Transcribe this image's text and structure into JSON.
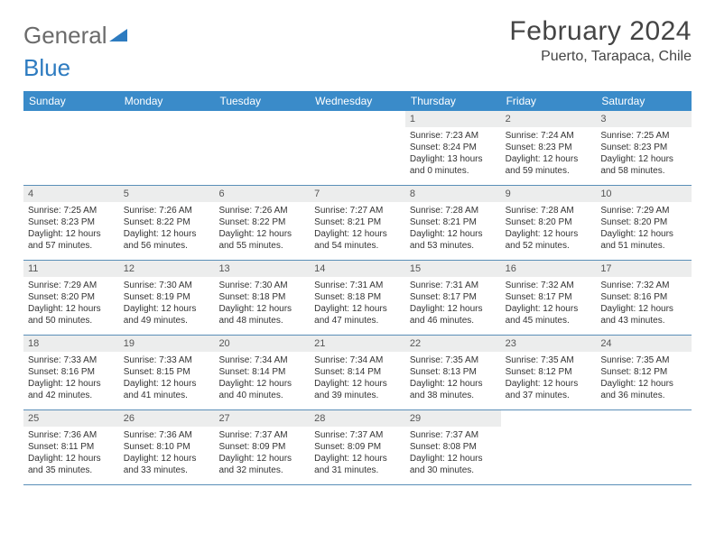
{
  "logo": {
    "part1": "General",
    "part2": "Blue"
  },
  "title": "February 2024",
  "location": "Puerto, Tarapaca, Chile",
  "day_headers": [
    "Sunday",
    "Monday",
    "Tuesday",
    "Wednesday",
    "Thursday",
    "Friday",
    "Saturday"
  ],
  "header_bg": "#3a8bc9",
  "grid_border": "#5a8fb8",
  "daynum_bg": "#eceded",
  "weeks": [
    [
      {
        "num": "",
        "lines": []
      },
      {
        "num": "",
        "lines": []
      },
      {
        "num": "",
        "lines": []
      },
      {
        "num": "",
        "lines": []
      },
      {
        "num": "1",
        "lines": [
          "Sunrise: 7:23 AM",
          "Sunset: 8:24 PM",
          "Daylight: 13 hours",
          "and 0 minutes."
        ]
      },
      {
        "num": "2",
        "lines": [
          "Sunrise: 7:24 AM",
          "Sunset: 8:23 PM",
          "Daylight: 12 hours",
          "and 59 minutes."
        ]
      },
      {
        "num": "3",
        "lines": [
          "Sunrise: 7:25 AM",
          "Sunset: 8:23 PM",
          "Daylight: 12 hours",
          "and 58 minutes."
        ]
      }
    ],
    [
      {
        "num": "4",
        "lines": [
          "Sunrise: 7:25 AM",
          "Sunset: 8:23 PM",
          "Daylight: 12 hours",
          "and 57 minutes."
        ]
      },
      {
        "num": "5",
        "lines": [
          "Sunrise: 7:26 AM",
          "Sunset: 8:22 PM",
          "Daylight: 12 hours",
          "and 56 minutes."
        ]
      },
      {
        "num": "6",
        "lines": [
          "Sunrise: 7:26 AM",
          "Sunset: 8:22 PM",
          "Daylight: 12 hours",
          "and 55 minutes."
        ]
      },
      {
        "num": "7",
        "lines": [
          "Sunrise: 7:27 AM",
          "Sunset: 8:21 PM",
          "Daylight: 12 hours",
          "and 54 minutes."
        ]
      },
      {
        "num": "8",
        "lines": [
          "Sunrise: 7:28 AM",
          "Sunset: 8:21 PM",
          "Daylight: 12 hours",
          "and 53 minutes."
        ]
      },
      {
        "num": "9",
        "lines": [
          "Sunrise: 7:28 AM",
          "Sunset: 8:20 PM",
          "Daylight: 12 hours",
          "and 52 minutes."
        ]
      },
      {
        "num": "10",
        "lines": [
          "Sunrise: 7:29 AM",
          "Sunset: 8:20 PM",
          "Daylight: 12 hours",
          "and 51 minutes."
        ]
      }
    ],
    [
      {
        "num": "11",
        "lines": [
          "Sunrise: 7:29 AM",
          "Sunset: 8:20 PM",
          "Daylight: 12 hours",
          "and 50 minutes."
        ]
      },
      {
        "num": "12",
        "lines": [
          "Sunrise: 7:30 AM",
          "Sunset: 8:19 PM",
          "Daylight: 12 hours",
          "and 49 minutes."
        ]
      },
      {
        "num": "13",
        "lines": [
          "Sunrise: 7:30 AM",
          "Sunset: 8:18 PM",
          "Daylight: 12 hours",
          "and 48 minutes."
        ]
      },
      {
        "num": "14",
        "lines": [
          "Sunrise: 7:31 AM",
          "Sunset: 8:18 PM",
          "Daylight: 12 hours",
          "and 47 minutes."
        ]
      },
      {
        "num": "15",
        "lines": [
          "Sunrise: 7:31 AM",
          "Sunset: 8:17 PM",
          "Daylight: 12 hours",
          "and 46 minutes."
        ]
      },
      {
        "num": "16",
        "lines": [
          "Sunrise: 7:32 AM",
          "Sunset: 8:17 PM",
          "Daylight: 12 hours",
          "and 45 minutes."
        ]
      },
      {
        "num": "17",
        "lines": [
          "Sunrise: 7:32 AM",
          "Sunset: 8:16 PM",
          "Daylight: 12 hours",
          "and 43 minutes."
        ]
      }
    ],
    [
      {
        "num": "18",
        "lines": [
          "Sunrise: 7:33 AM",
          "Sunset: 8:16 PM",
          "Daylight: 12 hours",
          "and 42 minutes."
        ]
      },
      {
        "num": "19",
        "lines": [
          "Sunrise: 7:33 AM",
          "Sunset: 8:15 PM",
          "Daylight: 12 hours",
          "and 41 minutes."
        ]
      },
      {
        "num": "20",
        "lines": [
          "Sunrise: 7:34 AM",
          "Sunset: 8:14 PM",
          "Daylight: 12 hours",
          "and 40 minutes."
        ]
      },
      {
        "num": "21",
        "lines": [
          "Sunrise: 7:34 AM",
          "Sunset: 8:14 PM",
          "Daylight: 12 hours",
          "and 39 minutes."
        ]
      },
      {
        "num": "22",
        "lines": [
          "Sunrise: 7:35 AM",
          "Sunset: 8:13 PM",
          "Daylight: 12 hours",
          "and 38 minutes."
        ]
      },
      {
        "num": "23",
        "lines": [
          "Sunrise: 7:35 AM",
          "Sunset: 8:12 PM",
          "Daylight: 12 hours",
          "and 37 minutes."
        ]
      },
      {
        "num": "24",
        "lines": [
          "Sunrise: 7:35 AM",
          "Sunset: 8:12 PM",
          "Daylight: 12 hours",
          "and 36 minutes."
        ]
      }
    ],
    [
      {
        "num": "25",
        "lines": [
          "Sunrise: 7:36 AM",
          "Sunset: 8:11 PM",
          "Daylight: 12 hours",
          "and 35 minutes."
        ]
      },
      {
        "num": "26",
        "lines": [
          "Sunrise: 7:36 AM",
          "Sunset: 8:10 PM",
          "Daylight: 12 hours",
          "and 33 minutes."
        ]
      },
      {
        "num": "27",
        "lines": [
          "Sunrise: 7:37 AM",
          "Sunset: 8:09 PM",
          "Daylight: 12 hours",
          "and 32 minutes."
        ]
      },
      {
        "num": "28",
        "lines": [
          "Sunrise: 7:37 AM",
          "Sunset: 8:09 PM",
          "Daylight: 12 hours",
          "and 31 minutes."
        ]
      },
      {
        "num": "29",
        "lines": [
          "Sunrise: 7:37 AM",
          "Sunset: 8:08 PM",
          "Daylight: 12 hours",
          "and 30 minutes."
        ]
      },
      {
        "num": "",
        "lines": []
      },
      {
        "num": "",
        "lines": []
      }
    ]
  ]
}
